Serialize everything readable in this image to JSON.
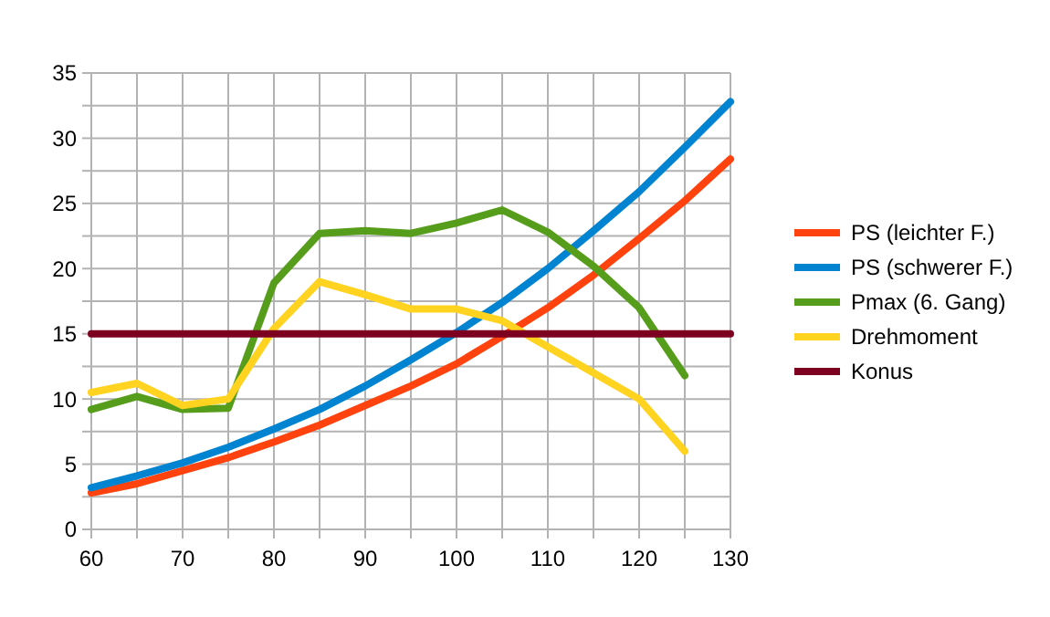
{
  "chart_data": {
    "type": "line",
    "x": [
      60,
      65,
      70,
      75,
      80,
      85,
      90,
      95,
      100,
      105,
      110,
      115,
      120,
      125,
      130
    ],
    "series": [
      {
        "name": "PS (leichter F.)",
        "color": "#ff420e",
        "values": [
          2.8,
          3.5,
          4.5,
          5.5,
          6.7,
          8.0,
          9.5,
          11,
          12.7,
          14.8,
          17,
          19.5,
          22.3,
          25.2,
          28.4
        ]
      },
      {
        "name": "PS (schwerer F.)",
        "color": "#0084d1",
        "values": [
          3.2,
          4.1,
          5.1,
          6.3,
          7.7,
          9.2,
          11,
          13,
          15.1,
          17.4,
          20,
          22.9,
          25.9,
          29.3,
          32.8
        ]
      },
      {
        "name": "Pmax (6. Gang)",
        "color": "#579d1c",
        "values": [
          9.2,
          10.2,
          9.2,
          9.3,
          18.9,
          22.7,
          22.9,
          22.7,
          23.5,
          24.5,
          22.8,
          20.2,
          17.0,
          11.8,
          null
        ]
      },
      {
        "name": "Drehmoment",
        "color": "#ffd320",
        "values": [
          10.5,
          11.2,
          9.5,
          10.0,
          15.4,
          19,
          18,
          16.9,
          16.9,
          16,
          14,
          12,
          10,
          6,
          null
        ]
      },
      {
        "name": "Konus",
        "color": "#7e0021",
        "values": [
          15,
          15,
          15,
          15,
          15,
          15,
          15,
          15,
          15,
          15,
          15,
          15,
          15,
          15,
          15
        ]
      }
    ],
    "xlim": [
      60,
      130
    ],
    "xticks": [
      60,
      {
        "value": 65,
        "label": null
      },
      70,
      {
        "value": 75,
        "label": null
      },
      80,
      {
        "value": 85,
        "label": null
      },
      90,
      {
        "value": 95,
        "label": null
      },
      100,
      {
        "value": 105,
        "label": null
      },
      110,
      {
        "value": 115,
        "label": null
      },
      120,
      {
        "value": 125,
        "label": null
      },
      130
    ],
    "ylim": [
      0,
      35
    ],
    "yticks": [
      0,
      {
        "value": 2.5,
        "label": null
      },
      5,
      {
        "value": 7.5,
        "label": null
      },
      10,
      {
        "value": 12.5,
        "label": null
      },
      15,
      {
        "value": 17.5,
        "label": null
      },
      20,
      {
        "value": 22.5,
        "label": null
      },
      25,
      {
        "value": 27.5,
        "label": null
      },
      30,
      {
        "value": 32.5,
        "label": null
      },
      35
    ],
    "grid": true,
    "legend": "right",
    "marker": "none",
    "line_style": "solid"
  }
}
